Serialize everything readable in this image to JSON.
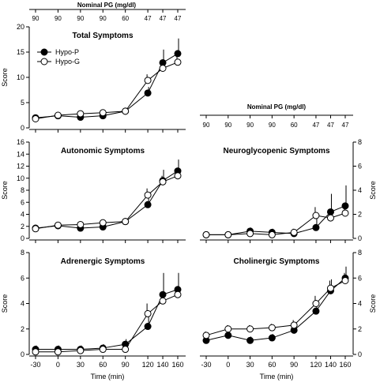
{
  "figure": {
    "top_axis_title": "Nominal PG (mg/dl)",
    "right_axis_title": "Nominal PG (mg/dl)",
    "nominal_pg_ticks": [
      "90",
      "90",
      "90",
      "90",
      "60",
      "47",
      "47",
      "47"
    ],
    "xlabel": "Time (min)",
    "ylabel": "Score"
  },
  "chart_data": [
    {
      "type": "line",
      "title": "Total Symptoms",
      "x": [
        -30,
        0,
        30,
        60,
        90,
        120,
        140,
        160
      ],
      "xticks": [
        "-30",
        "0",
        "30",
        "60",
        "90",
        "120",
        "140",
        "160"
      ],
      "ylim": [
        0,
        20
      ],
      "yticks": [
        "0",
        "5",
        "10",
        "15",
        "20"
      ],
      "ylabel": "Score",
      "legend": [
        "Hypo-P",
        "Hypo-G"
      ],
      "series": [
        {
          "name": "Hypo-P",
          "marker": "filled",
          "values": [
            2.0,
            2.4,
            2.1,
            2.4,
            3.3,
            6.9,
            12.9,
            14.7
          ],
          "err": [
            0.5,
            0.5,
            0.5,
            0.5,
            0.7,
            1.2,
            2.6,
            3.0
          ]
        },
        {
          "name": "Hypo-G",
          "marker": "open",
          "values": [
            1.8,
            2.5,
            2.8,
            3.0,
            3.3,
            9.4,
            11.8,
            13.0
          ],
          "err": [
            0.4,
            0.5,
            0.5,
            0.5,
            0.6,
            1.2,
            1.2,
            1.2
          ]
        }
      ]
    },
    {
      "type": "line",
      "title": "Autonomic Symptoms",
      "x": [
        -30,
        0,
        30,
        60,
        90,
        120,
        140,
        160
      ],
      "xticks": [
        "-30",
        "0",
        "30",
        "60",
        "90",
        "120",
        "140",
        "160"
      ],
      "ylim": [
        0,
        16
      ],
      "yticks": [
        "0",
        "2",
        "4",
        "6",
        "8",
        "10",
        "12",
        "14",
        "16"
      ],
      "ylabel": "Score",
      "series": [
        {
          "name": "Hypo-P",
          "marker": "filled",
          "values": [
            1.7,
            2.1,
            1.7,
            1.9,
            2.8,
            5.6,
            9.6,
            11.2
          ],
          "err": [
            0.4,
            0.4,
            0.4,
            0.4,
            0.4,
            1.4,
            1.8,
            1.9
          ]
        },
        {
          "name": "Hypo-G",
          "marker": "open",
          "values": [
            1.6,
            2.2,
            2.3,
            2.6,
            2.8,
            7.2,
            9.4,
            10.4
          ],
          "err": [
            0.3,
            0.4,
            0.4,
            0.4,
            0.4,
            1.1,
            1.0,
            1.0
          ]
        }
      ]
    },
    {
      "type": "line",
      "title": "Neuroglycopenic Symptoms",
      "x": [
        -30,
        0,
        30,
        60,
        90,
        120,
        140,
        160
      ],
      "xticks": [],
      "ylim": [
        0,
        8
      ],
      "yticks": [
        "0",
        "2",
        "4",
        "6",
        "8"
      ],
      "ylabel": "Score",
      "series": [
        {
          "name": "Hypo-P",
          "marker": "filled",
          "values": [
            0.3,
            0.3,
            0.6,
            0.5,
            0.4,
            0.9,
            2.2,
            2.7
          ],
          "err": [
            0.2,
            0.2,
            0.3,
            0.3,
            0.2,
            0.8,
            1.5,
            1.7
          ]
        },
        {
          "name": "Hypo-G",
          "marker": "open",
          "values": [
            0.3,
            0.3,
            0.4,
            0.3,
            0.5,
            1.9,
            1.7,
            2.1
          ],
          "err": [
            0.2,
            0.2,
            0.2,
            0.2,
            0.3,
            0.7,
            0.7,
            0.8
          ]
        }
      ]
    },
    {
      "type": "line",
      "title": "Adrenergic Symptoms",
      "x": [
        -30,
        0,
        30,
        60,
        90,
        120,
        140,
        160
      ],
      "xticks": [
        "-30",
        "0",
        "30",
        "60",
        "90",
        "120",
        "140",
        "160"
      ],
      "ylim": [
        0,
        8
      ],
      "yticks": [
        "0",
        "2",
        "4",
        "6",
        "8"
      ],
      "ylabel": "Score",
      "series": [
        {
          "name": "Hypo-P",
          "marker": "filled",
          "values": [
            0.4,
            0.4,
            0.4,
            0.5,
            0.8,
            2.2,
            4.7,
            5.1
          ],
          "err": [
            0.3,
            0.3,
            0.3,
            0.3,
            0.4,
            0.9,
            1.7,
            1.3
          ]
        },
        {
          "name": "Hypo-G",
          "marker": "open",
          "values": [
            0.2,
            0.2,
            0.3,
            0.4,
            0.4,
            3.2,
            4.2,
            4.7
          ],
          "err": [
            0.2,
            0.2,
            0.2,
            0.2,
            0.2,
            0.8,
            0.6,
            0.6
          ]
        }
      ]
    },
    {
      "type": "line",
      "title": "Cholinergic Symptoms",
      "x": [
        -30,
        0,
        30,
        60,
        90,
        120,
        140,
        160
      ],
      "xticks": [
        "-30",
        "0",
        "30",
        "60",
        "90",
        "120",
        "140",
        "160"
      ],
      "ylim": [
        0,
        8
      ],
      "yticks": [
        "0",
        "2",
        "4",
        "6",
        "8"
      ],
      "ylabel": "Score",
      "series": [
        {
          "name": "Hypo-P",
          "marker": "filled",
          "values": [
            1.1,
            1.5,
            1.1,
            1.3,
            1.9,
            3.4,
            5.0,
            6.0
          ],
          "err": [
            0.3,
            0.3,
            0.3,
            0.3,
            0.4,
            0.8,
            0.9,
            0.9
          ]
        },
        {
          "name": "Hypo-G",
          "marker": "open",
          "values": [
            1.5,
            2.0,
            2.0,
            2.1,
            2.3,
            4.0,
            5.2,
            5.8
          ],
          "err": [
            0.3,
            0.3,
            0.3,
            0.3,
            0.4,
            0.6,
            0.6,
            0.6
          ]
        }
      ]
    }
  ]
}
